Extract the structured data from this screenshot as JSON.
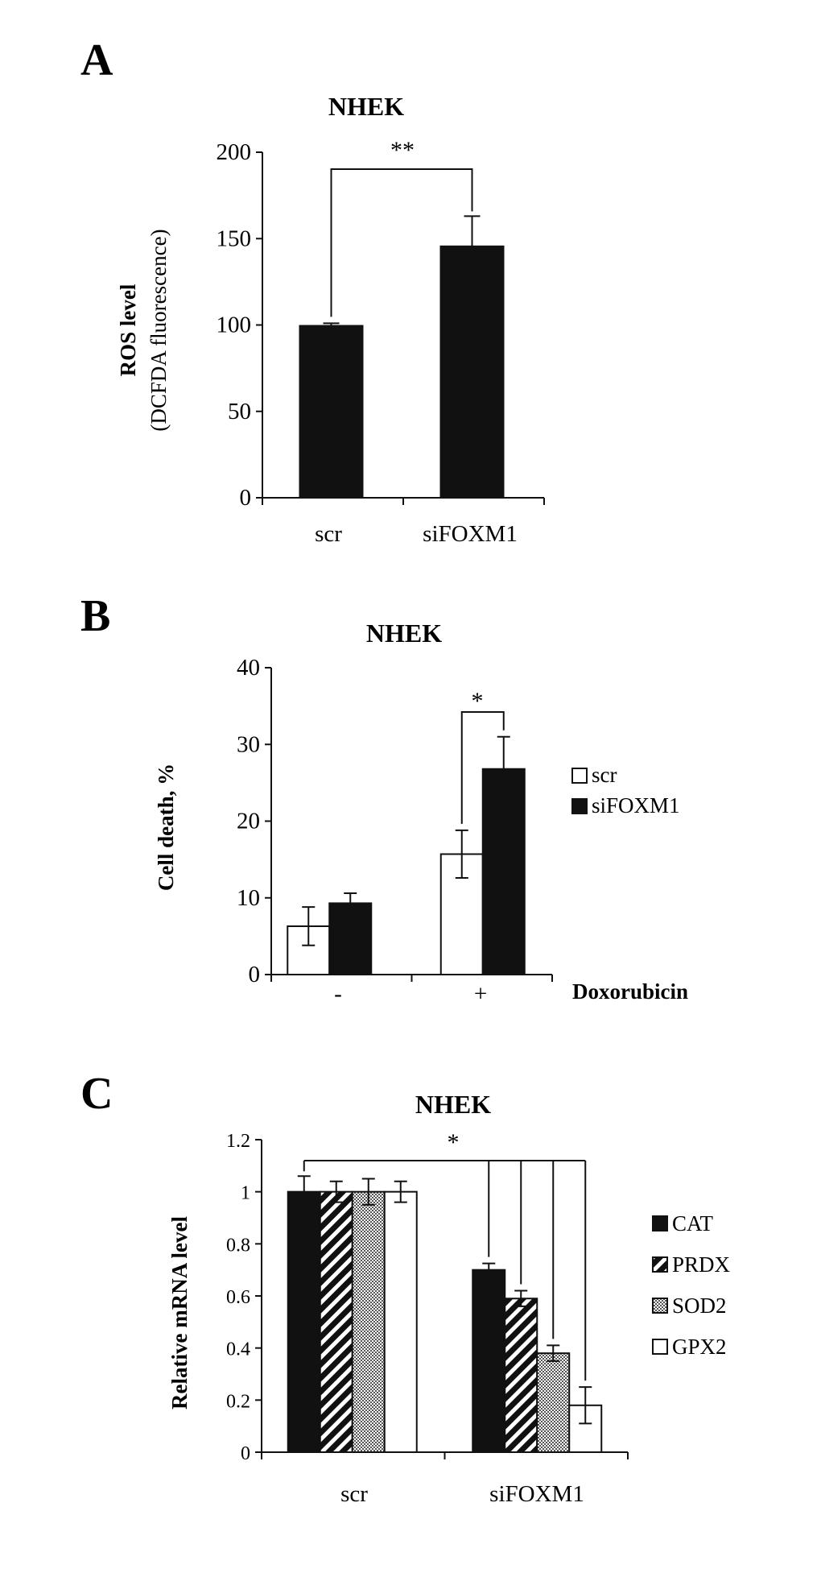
{
  "chart_data": [
    {
      "panel": "A",
      "type": "bar",
      "title": "NHEK",
      "ylabel": "ROS level",
      "ylabel2": "(DCFDA fluorescence)",
      "xlabel": "",
      "categories": [
        "scr",
        "siFOXM1"
      ],
      "values": [
        100,
        146
      ],
      "errors": [
        1,
        17
      ],
      "ylim": [
        0,
        200
      ],
      "yticks": [
        0,
        50,
        100,
        150,
        200
      ],
      "series": [
        {
          "name": "",
          "values": [
            100,
            146
          ],
          "errors": [
            1,
            17
          ],
          "color": "#111111"
        }
      ],
      "significance": [
        {
          "label": "**",
          "from": 0,
          "to": 1
        }
      ]
    },
    {
      "panel": "B",
      "type": "bar",
      "title": "NHEK",
      "ylabel": "Cell death, %",
      "xlabel": "Doxorubicin",
      "categories": [
        "-",
        "+"
      ],
      "ylim": [
        0,
        40
      ],
      "yticks": [
        0,
        10,
        20,
        30,
        40
      ],
      "series": [
        {
          "name": "scr",
          "values": [
            6.3,
            15.7
          ],
          "errors": [
            2.5,
            3.1
          ],
          "color": "#ffffff"
        },
        {
          "name": "siFOXM1",
          "values": [
            9.3,
            26.8
          ],
          "errors": [
            1.3,
            4.2
          ],
          "color": "#111111"
        }
      ],
      "legend": [
        "scr",
        "siFOXM1"
      ],
      "significance": [
        {
          "label": "*",
          "group": 1
        }
      ]
    },
    {
      "panel": "C",
      "type": "bar",
      "title": "NHEK",
      "ylabel": "Relative mRNA level",
      "xlabel": "",
      "categories": [
        "scr",
        "siFOXM1"
      ],
      "ylim": [
        0,
        1.2
      ],
      "yticks": [
        "0",
        "0.2",
        "0.4",
        "0.6",
        "0.8",
        "1",
        "1.2"
      ],
      "series": [
        {
          "name": "CAT",
          "values": [
            1.0,
            0.7
          ],
          "errors": [
            0.06,
            0.025
          ],
          "pattern": "solid"
        },
        {
          "name": "PRDX",
          "values": [
            1.0,
            0.59
          ],
          "errors": [
            0.04,
            0.03
          ],
          "pattern": "stripes"
        },
        {
          "name": "SOD2",
          "values": [
            1.0,
            0.38
          ],
          "errors": [
            0.05,
            0.03
          ],
          "pattern": "checker"
        },
        {
          "name": "GPX2",
          "values": [
            1.0,
            0.18
          ],
          "errors": [
            0.04,
            0.07
          ],
          "pattern": "empty"
        }
      ],
      "legend": [
        "CAT",
        "PRDX",
        "SOD2",
        "GPX2"
      ],
      "significance": [
        {
          "label": "*"
        }
      ]
    }
  ],
  "panels": {
    "a": {
      "letter": "A",
      "title": "NHEK",
      "ylabel": "ROS level",
      "ylabel2": "(DCFDA fluorescence)",
      "sig": "**",
      "yticks": [
        "0",
        "50",
        "100",
        "150",
        "200"
      ],
      "cats": [
        "scr",
        "siFOXM1"
      ]
    },
    "b": {
      "letter": "B",
      "title": "NHEK",
      "ylabel": "Cell death, %",
      "xlabel": "Doxorubicin",
      "sig": "*",
      "yticks": [
        "0",
        "10",
        "20",
        "30",
        "40"
      ],
      "cats": [
        "-",
        "+"
      ],
      "legend": [
        "scr",
        "siFOXM1"
      ]
    },
    "c": {
      "letter": "C",
      "title": "NHEK",
      "ylabel": "Relative mRNA level",
      "sig": "*",
      "yticks": [
        "0",
        "0.2",
        "0.4",
        "0.6",
        "0.8",
        "1",
        "1.2"
      ],
      "cats": [
        "scr",
        "siFOXM1"
      ],
      "legend": [
        "CAT",
        "PRDX",
        "SOD2",
        "GPX2"
      ]
    }
  }
}
